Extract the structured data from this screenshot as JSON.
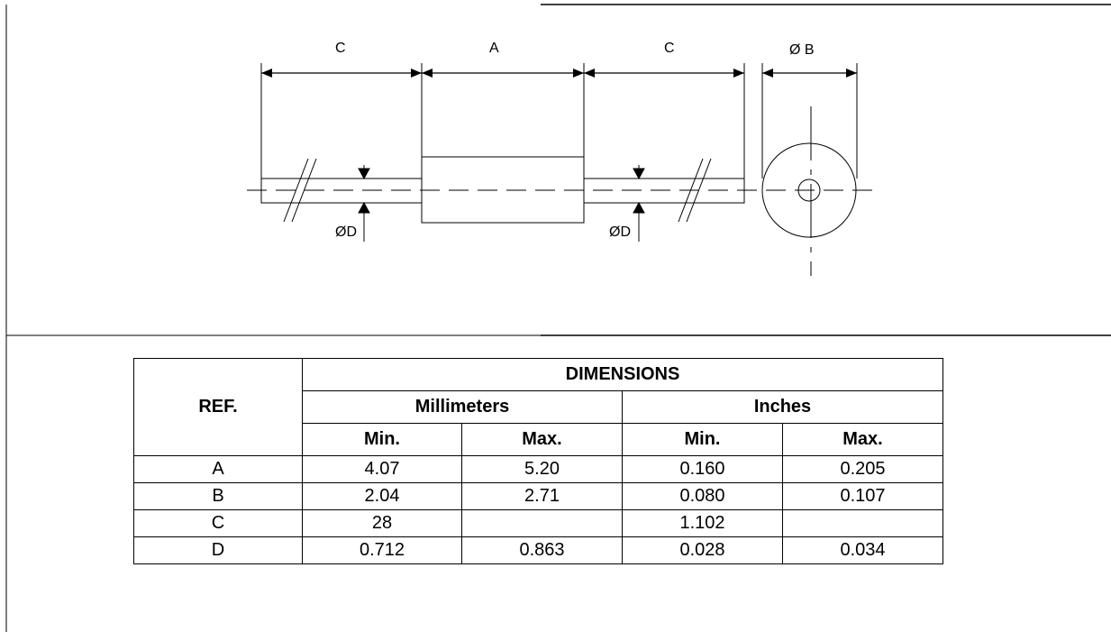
{
  "drawing": {
    "labels": {
      "c_left": "C",
      "a": "A",
      "c_right": "C",
      "b": "Ø B",
      "d_left": "ØD",
      "d_right": "ØD"
    }
  },
  "table": {
    "title": "DIMENSIONS",
    "ref_header": "REF.",
    "groups": [
      "Millimeters",
      "Inches"
    ],
    "sub_headers": [
      "Min.",
      "Max.",
      "Min.",
      "Max."
    ],
    "rows": [
      {
        "ref": "A",
        "mm_min": "4.07",
        "mm_max": "5.20",
        "in_min": "0.160",
        "in_max": "0.205"
      },
      {
        "ref": "B",
        "mm_min": "2.04",
        "mm_max": "2.71",
        "in_min": "0.080",
        "in_max": "0.107"
      },
      {
        "ref": "C",
        "mm_min": "28",
        "mm_max": "",
        "in_min": "1.102",
        "in_max": ""
      },
      {
        "ref": "D",
        "mm_min": "0.712",
        "mm_max": "0.863",
        "in_min": "0.028",
        "in_max": "0.034"
      }
    ]
  }
}
